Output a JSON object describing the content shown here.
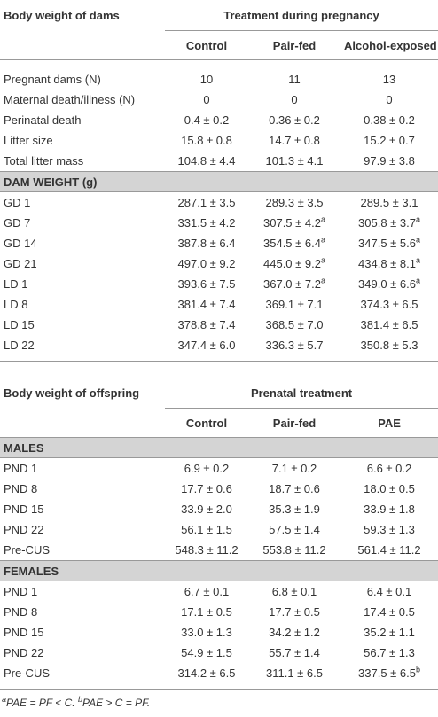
{
  "tables": [
    {
      "title": "Body weight of dams",
      "group": "Treatment during pregnancy",
      "columns": [
        "Control",
        "Pair-fed",
        "Alcohol-exposed"
      ],
      "rows": [
        [
          "Pregnant dams (N)",
          "10",
          "11",
          "13"
        ],
        [
          "Maternal death/illness (N)",
          "0",
          "0",
          "0"
        ],
        [
          "Perinatal death",
          "0.4 ± 0.2",
          "0.36 ± 0.2",
          "0.38 ± 0.2"
        ],
        [
          "Litter size",
          "15.8 ± 0.8",
          "14.7 ± 0.8",
          "15.2 ± 0.7"
        ],
        [
          "Total litter mass",
          "104.8 ± 4.4",
          "101.3 ± 4.1",
          "97.9 ± 3.8"
        ]
      ],
      "sections": [
        {
          "name": "DAM WEIGHT (g)",
          "rows": [
            [
              "GD 1",
              "287.1 ± 3.5",
              "289.3 ± 3.5",
              "289.5 ± 3.1"
            ],
            [
              "GD 7",
              "331.5 ± 4.2",
              {
                "text": "307.5 ± 4.2",
                "sup": "a"
              },
              {
                "text": "305.8 ± 3.7",
                "sup": "a"
              }
            ],
            [
              "GD 14",
              "387.8 ± 6.4",
              {
                "text": "354.5 ± 6.4",
                "sup": "a"
              },
              {
                "text": "347.5 ± 5.6",
                "sup": "a"
              }
            ],
            [
              "GD 21",
              "497.0 ± 9.2",
              {
                "text": "445.0 ± 9.2",
                "sup": "a"
              },
              {
                "text": "434.8 ± 8.1",
                "sup": "a"
              }
            ],
            [
              "LD 1",
              "393.6 ± 7.5",
              {
                "text": "367.0 ± 7.2",
                "sup": "a"
              },
              {
                "text": "349.0 ± 6.6",
                "sup": "a"
              }
            ],
            [
              "LD 8",
              "381.4 ± 7.4",
              "369.1 ± 7.1",
              "374.3 ± 6.5"
            ],
            [
              "LD 15",
              "378.8 ± 7.4",
              "368.5 ± 7.0",
              "381.4 ± 6.5"
            ],
            [
              "LD 22",
              "347.4 ± 6.0",
              "336.3 ± 5.7",
              "350.8 ± 5.3"
            ]
          ]
        }
      ]
    },
    {
      "title": "Body weight of offspring",
      "group": "Prenatal treatment",
      "columns": [
        "Control",
        "Pair-fed",
        "PAE"
      ],
      "sections": [
        {
          "name": "MALES",
          "rows": [
            [
              "PND 1",
              "6.9 ± 0.2",
              "7.1 ± 0.2",
              "6.6 ± 0.2"
            ],
            [
              "PND 8",
              "17.7 ± 0.6",
              "18.7 ± 0.6",
              "18.0 ± 0.5"
            ],
            [
              "PND 15",
              "33.9 ± 2.0",
              "35.3 ± 1.9",
              "33.9 ± 1.8"
            ],
            [
              "PND 22",
              "56.1 ± 1.5",
              "57.5 ± 1.4",
              "59.3 ± 1.3"
            ],
            [
              "Pre-CUS",
              "548.3 ± 11.2",
              "553.8 ± 11.2",
              "561.4 ± 11.2"
            ]
          ]
        },
        {
          "name": "FEMALES",
          "rows": [
            [
              "PND 1",
              "6.7 ± 0.1",
              "6.8 ± 0.1",
              "6.4 ± 0.1"
            ],
            [
              "PND 8",
              "17.1 ± 0.5",
              "17.7 ± 0.5",
              "17.4 ± 0.5"
            ],
            [
              "PND 15",
              "33.0 ± 1.3",
              "34.2 ± 1.2",
              "35.2 ± 1.1"
            ],
            [
              "PND 22",
              "54.9 ± 1.5",
              "55.7 ± 1.4",
              "56.7 ± 1.3"
            ],
            [
              "Pre-CUS",
              "314.2 ± 6.5",
              "311.1 ± 6.5",
              {
                "text": "337.5 ± 6.5",
                "sup": "b"
              }
            ]
          ]
        }
      ]
    }
  ],
  "footnotes": [
    {
      "sup": "a",
      "text": "PAE = PF < C."
    },
    {
      "sup": "b",
      "text": "PAE > C = PF."
    }
  ]
}
